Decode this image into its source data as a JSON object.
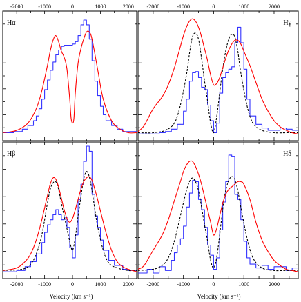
{
  "figure": {
    "xlabel": "Velocity (km s⁻¹)",
    "tick_labels": {
      "left_top": [
        "-2000",
        "-1000",
        "0",
        "1000",
        "2000"
      ],
      "left_bottom": [
        "-2000",
        "-1000",
        "0",
        "1000",
        "2000"
      ],
      "right_top": [
        "-2000",
        "-1000",
        "0",
        "1000",
        "2000"
      ],
      "right_bottom": [
        "-2000",
        "-1000",
        "0",
        "1000",
        "2000"
      ]
    }
  },
  "chart_data": [
    {
      "type": "line",
      "panel": "top-left",
      "label": "Hα",
      "xlim": [
        -2500,
        2300
      ],
      "ylim": [
        0,
        1
      ],
      "tick_values": [
        -2000,
        -1000,
        0,
        1000,
        2000
      ],
      "ticks_shown": "top",
      "series": [
        {
          "color": "#3333ff",
          "style": "step",
          "x": [
            -2500,
            -2100,
            -1800,
            -1600,
            -1400,
            -1300,
            -1200,
            -1100,
            -1000,
            -900,
            -800,
            -700,
            -600,
            -500,
            -400,
            -300,
            -200,
            -100,
            0,
            100,
            200,
            300,
            400,
            500,
            600,
            700,
            800,
            900,
            1000,
            1100,
            1200,
            1400,
            1600,
            1800,
            2000,
            2300
          ],
          "y": [
            0.02,
            0.03,
            0.05,
            0.08,
            0.12,
            0.16,
            0.22,
            0.3,
            0.38,
            0.46,
            0.54,
            0.61,
            0.67,
            0.71,
            0.74,
            0.75,
            0.75,
            0.75,
            0.76,
            0.78,
            0.83,
            0.92,
            0.96,
            0.92,
            0.8,
            0.62,
            0.45,
            0.33,
            0.24,
            0.17,
            0.12,
            0.08,
            0.05,
            0.03,
            0.03,
            0.03
          ]
        },
        {
          "color": "#ff0000",
          "style": "smooth",
          "x": [
            -2500,
            -2000,
            -1600,
            -1300,
            -1100,
            -900,
            -800,
            -700,
            -600,
            -500,
            -400,
            -300,
            -200,
            -100,
            -50,
            0,
            50,
            100,
            200,
            300,
            400,
            500,
            600,
            700,
            900,
            1100,
            1400,
            1700,
            2000,
            2300
          ],
          "y": [
            0.02,
            0.04,
            0.1,
            0.22,
            0.37,
            0.58,
            0.7,
            0.79,
            0.83,
            0.78,
            0.7,
            0.65,
            0.55,
            0.3,
            0.14,
            0.1,
            0.14,
            0.35,
            0.6,
            0.72,
            0.8,
            0.86,
            0.86,
            0.8,
            0.55,
            0.3,
            0.12,
            0.05,
            0.02,
            0.02
          ]
        }
      ]
    },
    {
      "type": "line",
      "panel": "top-right",
      "label": "Hγ",
      "xlim": [
        -2500,
        2800
      ],
      "ylim": [
        0,
        1
      ],
      "tick_values": [
        -2000,
        -1000,
        0,
        1000,
        2000
      ],
      "ticks_shown": "top",
      "series": [
        {
          "color": "#3333ff",
          "style": "step",
          "x": [
            -2500,
            -2000,
            -1800,
            -1600,
            -1400,
            -1200,
            -1000,
            -900,
            -800,
            -700,
            -600,
            -500,
            -400,
            -300,
            -200,
            -100,
            0,
            100,
            200,
            300,
            400,
            500,
            600,
            700,
            800,
            900,
            1000,
            1100,
            1200,
            1400,
            1600,
            1800,
            2000,
            2200,
            2400,
            2600,
            2800
          ],
          "y": [
            0.01,
            0.01,
            0.02,
            0.03,
            0.05,
            0.09,
            0.2,
            0.3,
            0.45,
            0.52,
            0.53,
            0.48,
            0.4,
            0.38,
            0.25,
            0.12,
            0.02,
            0.1,
            0.35,
            0.48,
            0.52,
            0.55,
            0.57,
            0.77,
            0.9,
            0.77,
            0.55,
            0.3,
            0.16,
            0.09,
            0.06,
            0.04,
            0.04,
            0.06,
            0.05,
            0.04,
            0.04
          ]
        },
        {
          "color": "#000000",
          "style": "dashed",
          "x": [
            -2500,
            -2000,
            -1600,
            -1300,
            -1100,
            -900,
            -800,
            -700,
            -600,
            -500,
            -400,
            -300,
            -200,
            -100,
            0,
            100,
            200,
            300,
            400,
            500,
            600,
            700,
            800,
            900,
            1100,
            1300,
            1600,
            2000,
            2400,
            2800
          ],
          "y": [
            0.02,
            0.02,
            0.04,
            0.1,
            0.25,
            0.5,
            0.68,
            0.82,
            0.85,
            0.8,
            0.64,
            0.45,
            0.28,
            0.1,
            0.02,
            0.15,
            0.35,
            0.55,
            0.7,
            0.8,
            0.84,
            0.82,
            0.7,
            0.52,
            0.25,
            0.1,
            0.04,
            0.02,
            0.02,
            0.02
          ]
        },
        {
          "color": "#ff0000",
          "style": "smooth",
          "x": [
            -2500,
            -2300,
            -2000,
            -1700,
            -1500,
            -1300,
            -1100,
            -1000,
            -900,
            -800,
            -700,
            -600,
            -500,
            -400,
            -300,
            -200,
            -100,
            0,
            100,
            200,
            300,
            400,
            500,
            600,
            700,
            800,
            900,
            1000,
            1200,
            1400,
            1600,
            1800,
            2000,
            2200,
            2400,
            2600,
            2800
          ],
          "y": [
            0.03,
            0.08,
            0.22,
            0.32,
            0.42,
            0.56,
            0.74,
            0.83,
            0.9,
            0.95,
            0.97,
            0.95,
            0.9,
            0.82,
            0.72,
            0.62,
            0.5,
            0.42,
            0.43,
            0.48,
            0.56,
            0.64,
            0.71,
            0.76,
            0.79,
            0.79,
            0.76,
            0.7,
            0.58,
            0.44,
            0.3,
            0.2,
            0.12,
            0.07,
            0.04,
            0.02,
            0.01
          ]
        }
      ]
    },
    {
      "type": "line",
      "panel": "bottom-left",
      "label": "Hβ",
      "xlim": [
        -2500,
        2300
      ],
      "ylim": [
        0,
        1
      ],
      "tick_values": [
        -2000,
        -1000,
        0,
        1000,
        2000
      ],
      "ticks_shown": "bottom",
      "series": [
        {
          "color": "#3333ff",
          "style": "step",
          "x": [
            -2500,
            -2000,
            -1700,
            -1500,
            -1300,
            -1100,
            -1000,
            -900,
            -800,
            -700,
            -600,
            -500,
            -400,
            -300,
            -200,
            -100,
            0,
            100,
            200,
            300,
            400,
            500,
            600,
            700,
            800,
            900,
            1000,
            1100,
            1300,
            1500,
            1800,
            2000,
            2300
          ],
          "y": [
            0.01,
            0.02,
            0.05,
            0.09,
            0.15,
            0.24,
            0.32,
            0.38,
            0.42,
            0.46,
            0.5,
            0.46,
            0.42,
            0.44,
            0.36,
            0.2,
            0.12,
            0.3,
            0.58,
            0.7,
            0.88,
            1.0,
            0.96,
            0.62,
            0.45,
            0.36,
            0.26,
            0.18,
            0.1,
            0.06,
            0.03,
            0.02,
            0.02
          ]
        },
        {
          "color": "#000000",
          "style": "dashed",
          "x": [
            -2500,
            -1800,
            -1500,
            -1300,
            -1100,
            -900,
            -800,
            -700,
            -600,
            -500,
            -400,
            -300,
            -200,
            -100,
            0,
            100,
            200,
            300,
            400,
            500,
            600,
            700,
            800,
            900,
            1100,
            1300,
            1600,
            2000,
            2300
          ],
          "y": [
            0.02,
            0.03,
            0.07,
            0.15,
            0.3,
            0.55,
            0.66,
            0.71,
            0.72,
            0.66,
            0.55,
            0.45,
            0.35,
            0.25,
            0.18,
            0.28,
            0.45,
            0.6,
            0.74,
            0.8,
            0.76,
            0.65,
            0.5,
            0.37,
            0.18,
            0.08,
            0.04,
            0.02,
            0.02
          ]
        },
        {
          "color": "#ff0000",
          "style": "smooth",
          "x": [
            -2500,
            -2000,
            -1700,
            -1500,
            -1300,
            -1100,
            -900,
            -800,
            -700,
            -600,
            -500,
            -400,
            -300,
            -200,
            -100,
            0,
            100,
            200,
            300,
            400,
            500,
            600,
            700,
            800,
            900,
            1000,
            1200,
            1400,
            1600,
            1800,
            2000,
            2300
          ],
          "y": [
            0.02,
            0.04,
            0.09,
            0.15,
            0.26,
            0.42,
            0.61,
            0.7,
            0.75,
            0.74,
            0.68,
            0.59,
            0.5,
            0.43,
            0.4,
            0.43,
            0.5,
            0.58,
            0.66,
            0.72,
            0.75,
            0.76,
            0.73,
            0.66,
            0.58,
            0.49,
            0.32,
            0.18,
            0.09,
            0.05,
            0.03,
            0.01
          ]
        }
      ]
    },
    {
      "type": "line",
      "panel": "bottom-right",
      "label": "Hδ",
      "xlim": [
        -2500,
        2800
      ],
      "ylim": [
        0,
        1
      ],
      "tick_values": [
        -2000,
        -1000,
        0,
        1000,
        2000
      ],
      "ticks_shown": "bottom",
      "series": [
        {
          "color": "#3333ff",
          "style": "step",
          "x": [
            -2500,
            -2200,
            -2000,
            -1800,
            -1600,
            -1400,
            -1300,
            -1200,
            -1100,
            -1000,
            -900,
            -800,
            -700,
            -600,
            -500,
            -400,
            -300,
            -200,
            -100,
            0,
            100,
            200,
            300,
            400,
            500,
            600,
            700,
            800,
            900,
            1000,
            1100,
            1200,
            1400,
            1600,
            1800,
            2000,
            2200,
            2400,
            2600,
            2800
          ],
          "y": [
            0.0,
            0.03,
            0.0,
            0.05,
            0.02,
            0.1,
            0.16,
            0.22,
            0.27,
            0.37,
            0.52,
            0.63,
            0.73,
            0.72,
            0.58,
            0.5,
            0.36,
            0.22,
            0.14,
            0.03,
            0.12,
            0.34,
            0.56,
            0.72,
            0.93,
            0.92,
            0.62,
            0.58,
            0.42,
            0.25,
            0.12,
            0.07,
            0.04,
            0.06,
            0.03,
            0.05,
            0.05,
            0.02,
            0.04,
            0.05
          ]
        },
        {
          "color": "#000000",
          "style": "dashed",
          "x": [
            -2500,
            -2000,
            -1700,
            -1500,
            -1300,
            -1100,
            -900,
            -800,
            -700,
            -600,
            -500,
            -400,
            -300,
            -200,
            -100,
            0,
            100,
            200,
            300,
            400,
            500,
            600,
            700,
            800,
            900,
            1100,
            1300,
            1600,
            2000,
            2400,
            2800
          ],
          "y": [
            0.02,
            0.03,
            0.06,
            0.12,
            0.25,
            0.45,
            0.65,
            0.72,
            0.75,
            0.72,
            0.65,
            0.52,
            0.38,
            0.25,
            0.1,
            0.04,
            0.12,
            0.3,
            0.5,
            0.65,
            0.73,
            0.76,
            0.74,
            0.65,
            0.52,
            0.28,
            0.12,
            0.04,
            0.02,
            0.02,
            0.02
          ]
        },
        {
          "color": "#ff0000",
          "style": "smooth",
          "x": [
            -2500,
            -2300,
            -2000,
            -1700,
            -1500,
            -1300,
            -1100,
            -1000,
            -900,
            -800,
            -700,
            -600,
            -500,
            -400,
            -300,
            -200,
            -100,
            0,
            100,
            200,
            300,
            400,
            500,
            600,
            700,
            800,
            900,
            1000,
            1200,
            1400,
            1600,
            1800,
            2000,
            2200,
            2400,
            2600,
            2800
          ],
          "y": [
            0.03,
            0.06,
            0.18,
            0.3,
            0.42,
            0.57,
            0.72,
            0.8,
            0.85,
            0.88,
            0.88,
            0.84,
            0.78,
            0.7,
            0.6,
            0.5,
            0.4,
            0.3,
            0.35,
            0.45,
            0.55,
            0.62,
            0.66,
            0.68,
            0.7,
            0.72,
            0.72,
            0.7,
            0.58,
            0.4,
            0.26,
            0.17,
            0.1,
            0.06,
            0.03,
            0.02,
            0.01
          ]
        }
      ]
    }
  ]
}
